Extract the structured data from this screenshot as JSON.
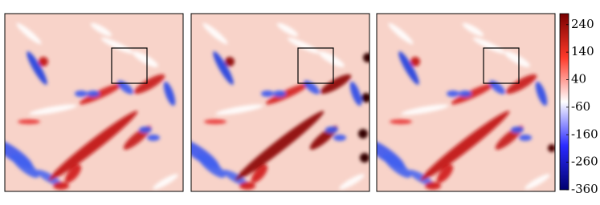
{
  "chart_data": {
    "type": "heatmap",
    "colorbar": {
      "clim": [
        -360,
        280
      ],
      "ticks": [
        240,
        140,
        40,
        -60,
        -160,
        -260,
        -360
      ],
      "colors": [
        "#00006e",
        "#2a2aff",
        "#ffffff",
        "#ff3a2a",
        "#780000"
      ]
    },
    "background": "#f8d3c9",
    "box_color": "#000000"
  }
}
